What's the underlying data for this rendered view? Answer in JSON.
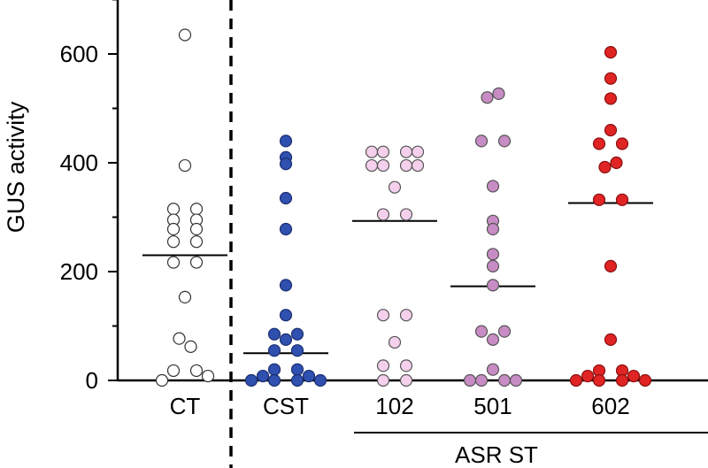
{
  "chart_data": {
    "type": "scatter",
    "ylabel": "GUS activity",
    "ylim": [
      0,
      700
    ],
    "yticks": [
      0,
      200,
      400,
      600
    ],
    "grid": false,
    "group_label": "ASR ST",
    "categories": [
      {
        "label": "CT",
        "fill": "#ffffff",
        "stroke": "#333333",
        "median": 230,
        "points": [
          {
            "dx": 0,
            "y": 635
          },
          {
            "dx": 0,
            "y": 395
          },
          {
            "dx": -1,
            "y": 315
          },
          {
            "dx": 1,
            "y": 315
          },
          {
            "dx": -1,
            "y": 295
          },
          {
            "dx": 1,
            "y": 295
          },
          {
            "dx": -1,
            "y": 278
          },
          {
            "dx": 1,
            "y": 278
          },
          {
            "dx": -1,
            "y": 255
          },
          {
            "dx": 1,
            "y": 255
          },
          {
            "dx": -1,
            "y": 217
          },
          {
            "dx": 1,
            "y": 217
          },
          {
            "dx": 0,
            "y": 153
          },
          {
            "dx": -0.5,
            "y": 77
          },
          {
            "dx": 0.5,
            "y": 62
          },
          {
            "dx": -1,
            "y": 18
          },
          {
            "dx": 1,
            "y": 18
          },
          {
            "dx": -2,
            "y": 0
          },
          {
            "dx": 2,
            "y": 8
          }
        ]
      },
      {
        "label": "CST",
        "fill": "#3050b0",
        "stroke": "#1a2f70",
        "median": 50,
        "points": [
          {
            "dx": 0,
            "y": 440
          },
          {
            "dx": 0,
            "y": 410
          },
          {
            "dx": 0,
            "y": 398
          },
          {
            "dx": 0,
            "y": 335
          },
          {
            "dx": 0,
            "y": 278
          },
          {
            "dx": 0,
            "y": 175
          },
          {
            "dx": 0,
            "y": 120
          },
          {
            "dx": -1,
            "y": 85
          },
          {
            "dx": 1,
            "y": 85
          },
          {
            "dx": 0,
            "y": 75
          },
          {
            "dx": -1,
            "y": 55
          },
          {
            "dx": 1,
            "y": 55
          },
          {
            "dx": -1,
            "y": 20
          },
          {
            "dx": 1,
            "y": 20
          },
          {
            "dx": -2,
            "y": 8
          },
          {
            "dx": 2,
            "y": 8
          },
          {
            "dx": -3,
            "y": 0
          },
          {
            "dx": -1,
            "y": 0
          },
          {
            "dx": 1,
            "y": 0
          },
          {
            "dx": 3,
            "y": 0
          }
        ]
      },
      {
        "label": "102",
        "fill": "#f4d0ec",
        "stroke": "#555555",
        "median": 293,
        "points": [
          {
            "dx": -2,
            "y": 420
          },
          {
            "dx": -1,
            "y": 420
          },
          {
            "dx": 1,
            "y": 420
          },
          {
            "dx": 2,
            "y": 420
          },
          {
            "dx": -2,
            "y": 395
          },
          {
            "dx": -1,
            "y": 395
          },
          {
            "dx": 1,
            "y": 395
          },
          {
            "dx": 2,
            "y": 395
          },
          {
            "dx": 0,
            "y": 355
          },
          {
            "dx": -1,
            "y": 305
          },
          {
            "dx": 1,
            "y": 305
          },
          {
            "dx": -1,
            "y": 120
          },
          {
            "dx": 1,
            "y": 120
          },
          {
            "dx": 0,
            "y": 70
          },
          {
            "dx": -1,
            "y": 27
          },
          {
            "dx": 1,
            "y": 27
          },
          {
            "dx": -1,
            "y": 0
          },
          {
            "dx": 1,
            "y": 0
          }
        ]
      },
      {
        "label": "501",
        "fill": "#c88cc4",
        "stroke": "#555555",
        "median": 173,
        "points": [
          {
            "dx": -0.5,
            "y": 520
          },
          {
            "dx": 0.5,
            "y": 527
          },
          {
            "dx": -1,
            "y": 440
          },
          {
            "dx": 1,
            "y": 440
          },
          {
            "dx": 0,
            "y": 357
          },
          {
            "dx": 0,
            "y": 293
          },
          {
            "dx": 0,
            "y": 278
          },
          {
            "dx": 0,
            "y": 232
          },
          {
            "dx": 0,
            "y": 210
          },
          {
            "dx": 0,
            "y": 175
          },
          {
            "dx": -1,
            "y": 90
          },
          {
            "dx": 1,
            "y": 90
          },
          {
            "dx": 0,
            "y": 75
          },
          {
            "dx": 0,
            "y": 20
          },
          {
            "dx": -2,
            "y": 0
          },
          {
            "dx": -1,
            "y": 0
          },
          {
            "dx": 1,
            "y": 0
          },
          {
            "dx": 2,
            "y": 0
          }
        ]
      },
      {
        "label": "602",
        "fill": "#e02424",
        "stroke": "#8a1010",
        "median": 326,
        "points": [
          {
            "dx": 0,
            "y": 603
          },
          {
            "dx": 0,
            "y": 555
          },
          {
            "dx": 0,
            "y": 518
          },
          {
            "dx": 0,
            "y": 460
          },
          {
            "dx": -1,
            "y": 435
          },
          {
            "dx": 1,
            "y": 435
          },
          {
            "dx": -0.5,
            "y": 392
          },
          {
            "dx": 0.5,
            "y": 400
          },
          {
            "dx": -1,
            "y": 332
          },
          {
            "dx": 1,
            "y": 332
          },
          {
            "dx": 0,
            "y": 210
          },
          {
            "dx": 0,
            "y": 75
          },
          {
            "dx": -1,
            "y": 18
          },
          {
            "dx": 1,
            "y": 18
          },
          {
            "dx": -2,
            "y": 8
          },
          {
            "dx": 2,
            "y": 8
          },
          {
            "dx": -3,
            "y": 0
          },
          {
            "dx": -1,
            "y": 0
          },
          {
            "dx": 1,
            "y": 0
          },
          {
            "dx": 3,
            "y": 0
          }
        ]
      }
    ]
  }
}
